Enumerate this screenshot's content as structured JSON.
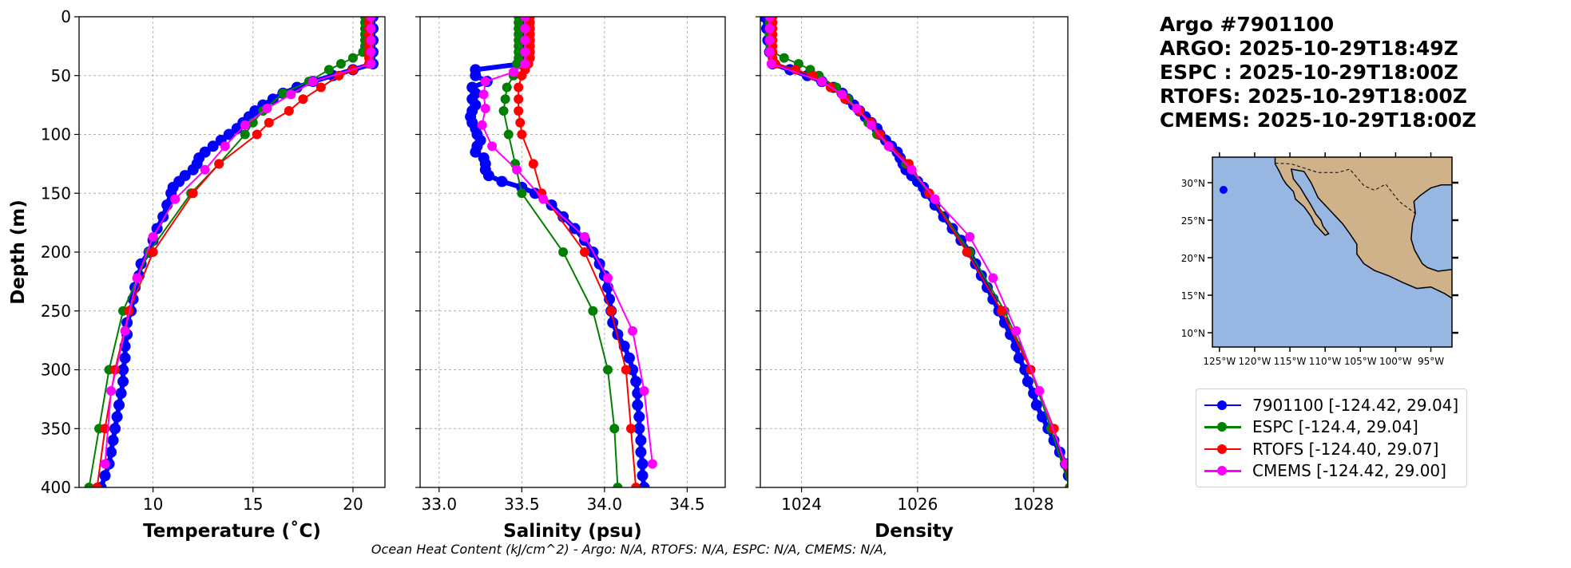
{
  "header": {
    "lines": [
      "Argo #7901100",
      "ARGO: 2025-10-29T18:49Z",
      "ESPC : 2025-10-29T18:00Z",
      "RTOFS: 2025-10-29T18:00Z",
      "CMEMS: 2025-10-29T18:00Z"
    ]
  },
  "footer": "Ocean Heat Content (kJ/cm^2) - Argo: N/A,  RTOFS: N/A,  ESPC: N/A,  CMEMS: N/A,",
  "legend": [
    {
      "label": "7901100 [-124.42, 29.04]",
      "color": "#0000ff"
    },
    {
      "label": "ESPC [-124.4, 29.04]",
      "color": "#008000"
    },
    {
      "label": "RTOFS [-124.40, 29.07]",
      "color": "#ff0000"
    },
    {
      "label": "CMEMS [-124.42, 29.00]",
      "color": "#ff00ff"
    }
  ],
  "colors": {
    "argo": "#0000ff",
    "espc": "#008000",
    "rtofs": "#ff0000",
    "cmems": "#ff00ff",
    "ocean": "#97b6e1",
    "land": "#cfb28a",
    "grid": "#b0b0b0"
  },
  "map": {
    "lon_ticks": [
      -125,
      -120,
      -115,
      -110,
      -105,
      -100,
      -95
    ],
    "lon_labels": [
      "125°W",
      "120°W",
      "115°W",
      "110°W",
      "105°W",
      "100°W",
      "95°W"
    ],
    "lat_ticks": [
      30,
      25,
      20,
      15,
      10
    ],
    "lat_labels": [
      "30°N",
      "25°N",
      "20°N",
      "15°N",
      "10°N"
    ],
    "extent": {
      "lon": [
        -126.0,
        -92.0
      ],
      "lat": [
        8.1,
        33.4
      ]
    },
    "argo_position": {
      "lon": -124.42,
      "lat": 29.04
    }
  },
  "chart_data": [
    {
      "type": "line",
      "xlabel": "Temperature (˚C)",
      "ylabel": "Depth (m)",
      "xlim": [
        6.3,
        21.6
      ],
      "ylim": [
        400,
        0
      ],
      "xticks": [
        10,
        15,
        20
      ],
      "xtick_labels": [
        "10",
        "15",
        "20"
      ],
      "yticks": [
        0,
        50,
        100,
        150,
        200,
        250,
        300,
        350,
        400
      ],
      "ytick_labels": [
        "0",
        "50",
        "100",
        "150",
        "200",
        "250",
        "300",
        "350",
        "400"
      ],
      "grid": true,
      "series": [
        {
          "name": "7901100",
          "key": "argo",
          "depth": [
            0,
            10,
            20,
            30,
            40,
            45,
            50,
            55,
            60,
            65,
            70,
            75,
            80,
            85,
            90,
            95,
            100,
            105,
            110,
            115,
            120,
            125,
            130,
            135,
            140,
            145,
            150,
            160,
            170,
            180,
            190,
            200,
            210,
            220,
            230,
            240,
            250,
            260,
            270,
            280,
            290,
            300,
            310,
            320,
            330,
            340,
            350,
            360,
            370,
            380,
            390,
            400
          ],
          "values": [
            21.0,
            21.0,
            21.0,
            21.0,
            21.0,
            20.0,
            19.0,
            18.0,
            17.2,
            16.5,
            16.0,
            15.5,
            15.1,
            14.8,
            14.5,
            14.2,
            13.8,
            13.4,
            13.0,
            12.6,
            12.3,
            12.2,
            12.0,
            11.6,
            11.3,
            11.0,
            10.9,
            10.7,
            10.5,
            10.2,
            10.0,
            9.8,
            9.4,
            9.3,
            9.1,
            9.0,
            8.9,
            8.7,
            8.7,
            8.6,
            8.6,
            8.5,
            8.5,
            8.4,
            8.3,
            8.2,
            8.1,
            8.0,
            7.9,
            7.8,
            7.6,
            7.4
          ]
        },
        {
          "name": "ESPC",
          "key": "espc",
          "depth": [
            0,
            5,
            10,
            15,
            20,
            25,
            30,
            35,
            40,
            45,
            55,
            65,
            80,
            90,
            100,
            125,
            150,
            200,
            250,
            300,
            350,
            400
          ],
          "values": [
            20.6,
            20.6,
            20.6,
            20.6,
            20.6,
            20.6,
            20.5,
            20.0,
            19.4,
            18.8,
            17.8,
            16.5,
            15.5,
            15.0,
            14.6,
            13.3,
            11.9,
            9.8,
            8.5,
            7.8,
            7.3,
            6.8
          ]
        },
        {
          "name": "RTOFS",
          "key": "rtofs",
          "depth": [
            0,
            5,
            10,
            15,
            20,
            25,
            30,
            35,
            40,
            45,
            50,
            60,
            70,
            80,
            90,
            100,
            125,
            150,
            200,
            250,
            300,
            350,
            400
          ],
          "values": [
            20.8,
            20.8,
            20.8,
            20.8,
            20.8,
            20.8,
            20.8,
            20.8,
            20.8,
            20.0,
            19.3,
            18.4,
            17.5,
            16.8,
            15.8,
            15.2,
            13.3,
            12.0,
            10.0,
            8.8,
            8.1,
            7.6,
            7.2
          ]
        },
        {
          "name": "CMEMS",
          "key": "cmems",
          "depth": [
            0,
            10,
            20,
            30,
            40,
            55,
            66,
            78,
            92,
            110,
            130,
            155,
            187,
            222,
            267,
            318,
            380
          ],
          "values": [
            20.9,
            20.9,
            20.9,
            20.9,
            20.9,
            18.0,
            16.9,
            15.7,
            14.6,
            13.6,
            12.6,
            11.1,
            10.0,
            9.2,
            8.6,
            7.9,
            7.6
          ]
        }
      ]
    },
    {
      "type": "line",
      "xlabel": "Salinity (psu)",
      "ylabel": "",
      "xlim": [
        32.885,
        34.73
      ],
      "ylim": [
        400,
        0
      ],
      "xticks": [
        33.0,
        33.5,
        34.0,
        34.5
      ],
      "xtick_labels": [
        "33.0",
        "33.5",
        "34.0",
        "34.5"
      ],
      "yticks": [
        0,
        50,
        100,
        150,
        200,
        250,
        300,
        350,
        400
      ],
      "grid": true,
      "series": [
        {
          "name": "7901100",
          "key": "argo",
          "depth": [
            0,
            10,
            20,
            30,
            40,
            45,
            50,
            55,
            60,
            65,
            70,
            75,
            80,
            85,
            90,
            95,
            100,
            105,
            110,
            115,
            120,
            125,
            130,
            135,
            140,
            145,
            150,
            160,
            170,
            180,
            190,
            200,
            210,
            220,
            230,
            240,
            250,
            260,
            270,
            280,
            290,
            300,
            310,
            320,
            330,
            340,
            350,
            360,
            370,
            380,
            390,
            400
          ],
          "values": [
            33.5,
            33.5,
            33.5,
            33.5,
            33.5,
            33.22,
            33.22,
            33.29,
            33.2,
            33.22,
            33.2,
            33.22,
            33.2,
            33.19,
            33.2,
            33.22,
            33.23,
            33.25,
            33.23,
            33.22,
            33.27,
            33.28,
            33.28,
            33.3,
            33.38,
            33.5,
            33.58,
            33.68,
            33.75,
            33.82,
            33.88,
            33.93,
            33.97,
            34.0,
            34.02,
            34.03,
            34.04,
            34.05,
            34.08,
            34.12,
            34.15,
            34.17,
            34.19,
            34.2,
            34.2,
            34.21,
            34.21,
            34.22,
            34.22,
            34.23,
            34.23,
            34.24
          ]
        },
        {
          "name": "ESPC",
          "key": "espc",
          "depth": [
            0,
            5,
            10,
            15,
            20,
            25,
            30,
            35,
            40,
            50,
            60,
            70,
            80,
            100,
            125,
            150,
            200,
            250,
            300,
            350,
            400
          ],
          "values": [
            33.48,
            33.48,
            33.48,
            33.48,
            33.48,
            33.48,
            33.48,
            33.48,
            33.47,
            33.45,
            33.41,
            33.4,
            33.39,
            33.42,
            33.46,
            33.5,
            33.75,
            33.93,
            34.02,
            34.06,
            34.08
          ]
        },
        {
          "name": "RTOFS",
          "key": "rtofs",
          "depth": [
            0,
            5,
            10,
            15,
            20,
            25,
            30,
            35,
            40,
            45,
            50,
            60,
            70,
            80,
            90,
            100,
            125,
            150,
            200,
            250,
            300,
            350,
            400
          ],
          "values": [
            33.55,
            33.55,
            33.55,
            33.55,
            33.55,
            33.55,
            33.55,
            33.55,
            33.54,
            33.52,
            33.5,
            33.48,
            33.48,
            33.48,
            33.49,
            33.5,
            33.57,
            33.62,
            33.88,
            34.04,
            34.13,
            34.16,
            34.19
          ]
        },
        {
          "name": "CMEMS",
          "key": "cmems",
          "depth": [
            0,
            10,
            20,
            30,
            40,
            47,
            55,
            66,
            78,
            92,
            110,
            130,
            155,
            187,
            222,
            267,
            318,
            380
          ],
          "values": [
            33.52,
            33.52,
            33.52,
            33.52,
            33.52,
            33.45,
            33.28,
            33.27,
            33.28,
            33.26,
            33.32,
            33.47,
            33.63,
            33.88,
            34.02,
            34.17,
            34.24,
            34.29
          ]
        }
      ]
    },
    {
      "type": "line",
      "xlabel": "Density",
      "ylabel": "",
      "xlim": [
        1023.29,
        1028.59
      ],
      "ylim": [
        400,
        0
      ],
      "xticks": [
        1024,
        1026,
        1028
      ],
      "xtick_labels": [
        "1024",
        "1026",
        "1028"
      ],
      "yticks": [
        0,
        50,
        100,
        150,
        200,
        250,
        300,
        350,
        400
      ],
      "grid": true,
      "series": [
        {
          "name": "7901100",
          "key": "argo",
          "depth": [
            0,
            10,
            20,
            30,
            40,
            45,
            50,
            55,
            60,
            65,
            70,
            75,
            80,
            85,
            90,
            95,
            100,
            105,
            110,
            115,
            120,
            125,
            130,
            135,
            140,
            145,
            150,
            160,
            170,
            180,
            190,
            200,
            210,
            220,
            230,
            240,
            250,
            260,
            270,
            280,
            290,
            300,
            310,
            320,
            330,
            340,
            350,
            360,
            370,
            380,
            390,
            400
          ],
          "values": [
            1023.35,
            1023.4,
            1023.42,
            1023.45,
            1023.5,
            1023.8,
            1024.1,
            1024.35,
            1024.55,
            1024.7,
            1024.8,
            1024.9,
            1025.0,
            1025.1,
            1025.2,
            1025.3,
            1025.35,
            1025.45,
            1025.55,
            1025.65,
            1025.7,
            1025.75,
            1025.8,
            1025.9,
            1026.0,
            1026.1,
            1026.15,
            1026.3,
            1026.45,
            1026.6,
            1026.75,
            1026.9,
            1027.0,
            1027.1,
            1027.2,
            1027.3,
            1027.4,
            1027.5,
            1027.6,
            1027.7,
            1027.75,
            1027.85,
            1027.9,
            1028.0,
            1028.05,
            1028.15,
            1028.25,
            1028.35,
            1028.45,
            1028.55,
            1028.6,
            1028.65
          ]
        },
        {
          "name": "ESPC",
          "key": "espc",
          "depth": [
            0,
            5,
            10,
            15,
            20,
            25,
            30,
            35,
            40,
            45,
            50,
            60,
            70,
            80,
            90,
            100,
            125,
            150,
            200,
            250,
            300,
            350,
            400
          ],
          "values": [
            1023.45,
            1023.45,
            1023.45,
            1023.45,
            1023.45,
            1023.46,
            1023.5,
            1023.7,
            1023.95,
            1024.15,
            1024.3,
            1024.6,
            1024.8,
            1025.0,
            1025.15,
            1025.3,
            1025.8,
            1026.2,
            1026.9,
            1027.5,
            1027.95,
            1028.3,
            1028.62
          ]
        },
        {
          "name": "RTOFS",
          "key": "rtofs",
          "depth": [
            0,
            5,
            10,
            15,
            20,
            25,
            30,
            35,
            40,
            45,
            50,
            60,
            70,
            80,
            90,
            100,
            125,
            150,
            200,
            250,
            300,
            350,
            400
          ],
          "values": [
            1023.5,
            1023.5,
            1023.5,
            1023.5,
            1023.5,
            1023.5,
            1023.5,
            1023.5,
            1023.55,
            1023.9,
            1024.2,
            1024.5,
            1024.75,
            1025.0,
            1025.2,
            1025.35,
            1025.85,
            1026.2,
            1026.85,
            1027.45,
            1027.95,
            1028.35,
            1028.65
          ]
        },
        {
          "name": "CMEMS",
          "key": "cmems",
          "depth": [
            0,
            10,
            20,
            30,
            40,
            55,
            66,
            78,
            92,
            110,
            130,
            155,
            187,
            222,
            267,
            318,
            380
          ],
          "values": [
            1023.45,
            1023.45,
            1023.45,
            1023.45,
            1023.48,
            1024.35,
            1024.7,
            1024.95,
            1025.2,
            1025.5,
            1025.9,
            1026.3,
            1026.9,
            1027.3,
            1027.7,
            1028.1,
            1028.55
          ]
        }
      ]
    }
  ]
}
